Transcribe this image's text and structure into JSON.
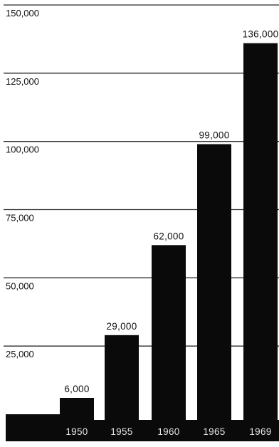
{
  "chart_data": {
    "type": "bar",
    "title": "",
    "xlabel": "",
    "ylabel": "",
    "categories": [
      "1950",
      "1955",
      "1960",
      "1965",
      "1969"
    ],
    "values": [
      6000,
      29000,
      62000,
      99000,
      136000
    ],
    "data_labels": [
      "6,000",
      "29,000",
      "62,000",
      "99,000",
      "136,000"
    ],
    "y_ticks": [
      {
        "value": 25000,
        "label": "25,000"
      },
      {
        "value": 50000,
        "label": "50,000"
      },
      {
        "value": 75000,
        "label": "75,000"
      },
      {
        "value": 100000,
        "label": "100,000"
      },
      {
        "value": 125000,
        "label": "125,000"
      },
      {
        "value": 150000,
        "label": "150,000"
      }
    ],
    "ylim": [
      0,
      150000
    ],
    "grid": true,
    "legend": "none",
    "colors": {
      "bar": "#0a0a0a",
      "grid": "#2a2a2a",
      "text": "#111111",
      "background": "#ffffff"
    }
  }
}
